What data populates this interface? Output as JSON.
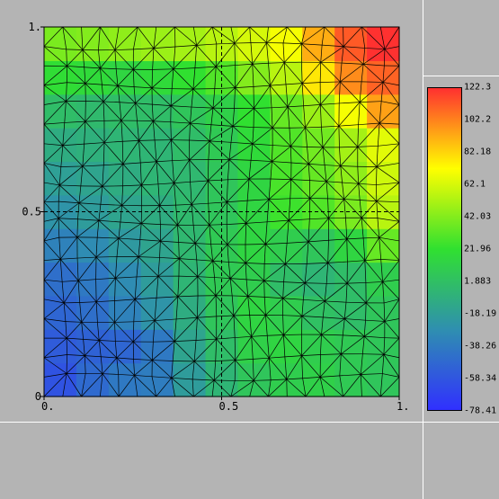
{
  "axes": {
    "x_ticks": [
      {
        "value": 0,
        "label": "0."
      },
      {
        "value": 0.5,
        "label": "0.5"
      },
      {
        "value": 1,
        "label": "1."
      }
    ],
    "y_ticks": [
      {
        "value": 0,
        "label": "0"
      },
      {
        "value": 0.5,
        "label": "0.5"
      },
      {
        "value": 1,
        "label": "1."
      }
    ]
  },
  "colorbar": {
    "labels": [
      "122.3",
      "102.2",
      "82.18",
      "62.1",
      "42.03",
      "21.96",
      "1.883",
      "-18.19",
      "-38.26",
      "-58.34",
      "-78.41"
    ],
    "min": -78.41,
    "max": 122.3,
    "colors": [
      "#3030ff",
      "#2f8fb0",
      "#30e030",
      "#ffff00",
      "#ff3030"
    ]
  },
  "chart_data": {
    "type": "heatmap",
    "xlim": [
      0,
      1
    ],
    "ylim": [
      0,
      1
    ],
    "value_range": [
      -78.41,
      122.3
    ],
    "grid_rows": [
      [
        -60,
        -48,
        -40,
        -38,
        -20,
        -5,
        5,
        10,
        12,
        8,
        5
      ],
      [
        -55,
        -52,
        -50,
        -40,
        -15,
        0,
        12,
        15,
        10,
        8,
        6
      ],
      [
        -50,
        -45,
        -35,
        -25,
        -10,
        5,
        15,
        10,
        2,
        0,
        5
      ],
      [
        -45,
        -40,
        -30,
        -20,
        -5,
        8,
        10,
        0,
        -5,
        0,
        10
      ],
      [
        -35,
        -30,
        -22,
        -15,
        -3,
        8,
        15,
        10,
        5,
        15,
        35
      ],
      [
        -25,
        -20,
        -15,
        -10,
        -2,
        5,
        15,
        25,
        30,
        40,
        55
      ],
      [
        -18,
        -15,
        -10,
        -5,
        -3,
        5,
        15,
        28,
        35,
        45,
        60
      ],
      [
        -10,
        -8,
        -5,
        -5,
        0,
        8,
        18,
        30,
        38,
        50,
        65
      ],
      [
        0,
        -2,
        0,
        0,
        5,
        12,
        22,
        35,
        48,
        70,
        95
      ],
      [
        20,
        18,
        15,
        18,
        22,
        30,
        42,
        55,
        78,
        100,
        110
      ],
      [
        40,
        42,
        45,
        48,
        50,
        55,
        62,
        70,
        92,
        112,
        122
      ]
    ]
  }
}
